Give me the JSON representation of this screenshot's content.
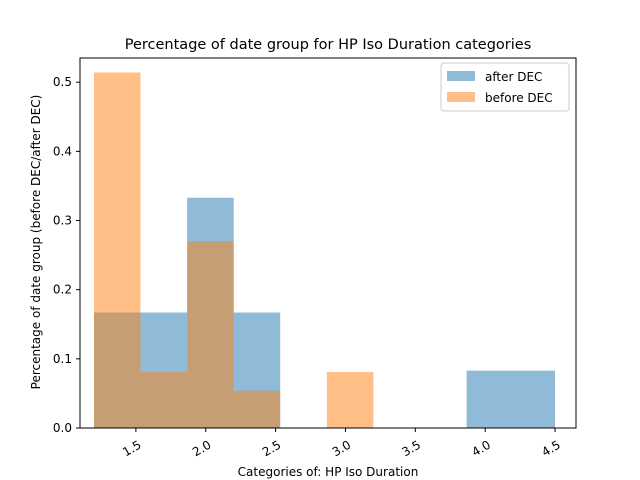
{
  "chart_data": {
    "type": "bar",
    "title": "Percentage of date group for HP Iso Duration categories",
    "xlabel": "Categories of: HP Iso Duration",
    "ylabel": "Percentage of date group (before DEC/after DEC)",
    "xlim": [
      1.1,
      4.65
    ],
    "ylim": [
      0,
      0.535
    ],
    "xticks": [
      1.5,
      2.0,
      2.5,
      3.0,
      3.5,
      4.0,
      4.5
    ],
    "xtick_labels": [
      "1.5",
      "2.0",
      "2.5",
      "3.0",
      "3.5",
      "4.0",
      "4.5"
    ],
    "yticks": [
      0.0,
      0.1,
      0.2,
      0.3,
      0.4,
      0.5
    ],
    "ytick_labels": [
      "0.0",
      "0.1",
      "0.2",
      "0.3",
      "0.4",
      "0.5"
    ],
    "grid": false,
    "legend_position": "top-right",
    "series": [
      {
        "name": "after DEC",
        "color": "#1f77b4",
        "opacity": 0.5,
        "bins": [
          {
            "x0": 1.2,
            "x1": 1.533,
            "value": 0.167
          },
          {
            "x0": 1.533,
            "x1": 1.867,
            "value": 0.167
          },
          {
            "x0": 1.867,
            "x1": 2.2,
            "value": 0.333
          },
          {
            "x0": 2.2,
            "x1": 2.533,
            "value": 0.167
          },
          {
            "x0": 2.533,
            "x1": 2.867,
            "value": 0.0
          },
          {
            "x0": 2.867,
            "x1": 3.2,
            "value": 0.0
          },
          {
            "x0": 3.2,
            "x1": 3.533,
            "value": 0.0
          },
          {
            "x0": 3.533,
            "x1": 3.867,
            "value": 0.0
          },
          {
            "x0": 3.867,
            "x1": 4.5,
            "value": 0.083
          }
        ]
      },
      {
        "name": "before DEC",
        "color": "#ff7f0e",
        "opacity": 0.5,
        "bins": [
          {
            "x0": 1.2,
            "x1": 1.533,
            "value": 0.514
          },
          {
            "x0": 1.533,
            "x1": 1.867,
            "value": 0.081
          },
          {
            "x0": 1.867,
            "x1": 2.2,
            "value": 0.27
          },
          {
            "x0": 2.2,
            "x1": 2.533,
            "value": 0.054
          },
          {
            "x0": 2.533,
            "x1": 2.867,
            "value": 0.0
          },
          {
            "x0": 2.867,
            "x1": 3.2,
            "value": 0.081
          }
        ]
      }
    ]
  }
}
